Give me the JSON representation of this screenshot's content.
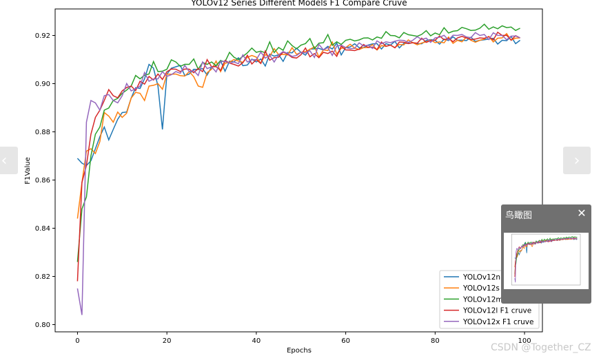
{
  "chart_data": {
    "type": "line",
    "title": "YOLOv12 Series Different Models F1 Compare Cruve",
    "xlabel": "Epochs",
    "ylabel": "F1Value",
    "xlim": [
      -5,
      104
    ],
    "ylim": [
      0.797,
      0.931
    ],
    "xticks": [
      0,
      20,
      40,
      60,
      80,
      100
    ],
    "yticks": [
      0.8,
      0.82,
      0.84,
      0.86,
      0.88,
      0.9,
      0.92
    ],
    "grid": false,
    "legend_position": "lower-right",
    "series": [
      {
        "name": "YOLOv12n F1 cruve",
        "color": "#1f77b4",
        "key": [
          [
            0,
            0.869
          ],
          [
            1,
            0.867
          ],
          [
            2,
            0.866
          ],
          [
            3,
            0.868
          ],
          [
            4,
            0.873
          ],
          [
            5,
            0.878
          ],
          [
            6,
            0.882
          ],
          [
            8,
            0.881
          ],
          [
            10,
            0.888
          ],
          [
            12,
            0.894
          ],
          [
            14,
            0.898
          ],
          [
            15,
            0.902
          ],
          [
            16,
            0.908
          ],
          [
            18,
            0.899
          ],
          [
            19,
            0.881
          ],
          [
            20,
            0.904
          ],
          [
            22,
            0.907
          ],
          [
            25,
            0.904
          ],
          [
            30,
            0.907
          ],
          [
            35,
            0.909
          ],
          [
            40,
            0.909
          ],
          [
            45,
            0.912
          ],
          [
            50,
            0.913
          ],
          [
            55,
            0.914
          ],
          [
            60,
            0.915
          ],
          [
            65,
            0.916
          ],
          [
            70,
            0.916
          ],
          [
            75,
            0.917
          ],
          [
            80,
            0.918
          ],
          [
            85,
            0.918
          ],
          [
            90,
            0.918
          ],
          [
            95,
            0.918
          ],
          [
            99,
            0.918
          ]
        ]
      },
      {
        "name": "YOLOv12s F1 cruve",
        "color": "#ff7f0e",
        "key": [
          [
            0,
            0.844
          ],
          [
            1,
            0.859
          ],
          [
            2,
            0.872
          ],
          [
            3,
            0.873
          ],
          [
            4,
            0.871
          ],
          [
            5,
            0.876
          ],
          [
            6,
            0.888
          ],
          [
            8,
            0.884
          ],
          [
            10,
            0.886
          ],
          [
            12,
            0.894
          ],
          [
            14,
            0.896
          ],
          [
            16,
            0.899
          ],
          [
            18,
            0.9
          ],
          [
            20,
            0.904
          ],
          [
            22,
            0.904
          ],
          [
            25,
            0.905
          ],
          [
            27,
            0.899
          ],
          [
            30,
            0.906
          ],
          [
            35,
            0.91
          ],
          [
            40,
            0.911
          ],
          [
            45,
            0.912
          ],
          [
            50,
            0.913
          ],
          [
            55,
            0.914
          ],
          [
            60,
            0.915
          ],
          [
            65,
            0.915
          ],
          [
            70,
            0.916
          ],
          [
            75,
            0.917
          ],
          [
            80,
            0.917
          ],
          [
            85,
            0.918
          ],
          [
            90,
            0.918
          ],
          [
            95,
            0.919
          ],
          [
            99,
            0.919
          ]
        ]
      },
      {
        "name": "YOLOv12m F1 cruve",
        "color": "#2ca02c",
        "key": [
          [
            0,
            0.826
          ],
          [
            1,
            0.848
          ],
          [
            2,
            0.853
          ],
          [
            3,
            0.87
          ],
          [
            4,
            0.879
          ],
          [
            5,
            0.882
          ],
          [
            6,
            0.889
          ],
          [
            8,
            0.893
          ],
          [
            10,
            0.896
          ],
          [
            12,
            0.899
          ],
          [
            14,
            0.902
          ],
          [
            16,
            0.904
          ],
          [
            18,
            0.905
          ],
          [
            20,
            0.906
          ],
          [
            22,
            0.909
          ],
          [
            25,
            0.908
          ],
          [
            30,
            0.909
          ],
          [
            35,
            0.911
          ],
          [
            40,
            0.913
          ],
          [
            45,
            0.915
          ],
          [
            50,
            0.916
          ],
          [
            55,
            0.917
          ],
          [
            60,
            0.918
          ],
          [
            65,
            0.919
          ],
          [
            70,
            0.92
          ],
          [
            75,
            0.92
          ],
          [
            80,
            0.921
          ],
          [
            85,
            0.922
          ],
          [
            90,
            0.923
          ],
          [
            95,
            0.924
          ],
          [
            99,
            0.923
          ]
        ]
      },
      {
        "name": "YOLOv12l F1 cruve",
        "color": "#d62728",
        "key": [
          [
            0,
            0.818
          ],
          [
            1,
            0.859
          ],
          [
            2,
            0.866
          ],
          [
            3,
            0.879
          ],
          [
            4,
            0.886
          ],
          [
            5,
            0.889
          ],
          [
            6,
            0.893
          ],
          [
            8,
            0.895
          ],
          [
            10,
            0.897
          ],
          [
            12,
            0.899
          ],
          [
            14,
            0.901
          ],
          [
            16,
            0.903
          ],
          [
            18,
            0.904
          ],
          [
            20,
            0.905
          ],
          [
            22,
            0.906
          ],
          [
            25,
            0.906
          ],
          [
            30,
            0.907
          ],
          [
            35,
            0.908
          ],
          [
            40,
            0.91
          ],
          [
            45,
            0.911
          ],
          [
            50,
            0.912
          ],
          [
            55,
            0.913
          ],
          [
            60,
            0.914
          ],
          [
            65,
            0.915
          ],
          [
            70,
            0.916
          ],
          [
            75,
            0.917
          ],
          [
            80,
            0.918
          ],
          [
            85,
            0.919
          ],
          [
            90,
            0.919
          ],
          [
            95,
            0.92
          ],
          [
            99,
            0.919
          ]
        ]
      },
      {
        "name": "YOLOv12x F1 cruve",
        "color": "#9467bd",
        "key": [
          [
            0,
            0.815
          ],
          [
            1,
            0.804
          ],
          [
            2,
            0.884
          ],
          [
            3,
            0.893
          ],
          [
            4,
            0.892
          ],
          [
            5,
            0.889
          ],
          [
            6,
            0.895
          ],
          [
            8,
            0.893
          ],
          [
            10,
            0.895
          ],
          [
            12,
            0.897
          ],
          [
            14,
            0.899
          ],
          [
            16,
            0.901
          ],
          [
            18,
            0.902
          ],
          [
            20,
            0.903
          ],
          [
            22,
            0.905
          ],
          [
            25,
            0.905
          ],
          [
            30,
            0.907
          ],
          [
            35,
            0.909
          ],
          [
            40,
            0.91
          ],
          [
            45,
            0.912
          ],
          [
            50,
            0.913
          ],
          [
            55,
            0.914
          ],
          [
            60,
            0.915
          ],
          [
            65,
            0.916
          ],
          [
            70,
            0.917
          ],
          [
            75,
            0.918
          ],
          [
            80,
            0.919
          ],
          [
            85,
            0.92
          ],
          [
            90,
            0.92
          ],
          [
            95,
            0.92
          ],
          [
            99,
            0.919
          ]
        ]
      }
    ]
  },
  "nav": {
    "prev_symbol": "‹",
    "next_symbol": "›"
  },
  "minimap": {
    "title": "鸟瞰图",
    "close_symbol": "✕"
  },
  "watermark": "CSDN @Together_CZ"
}
